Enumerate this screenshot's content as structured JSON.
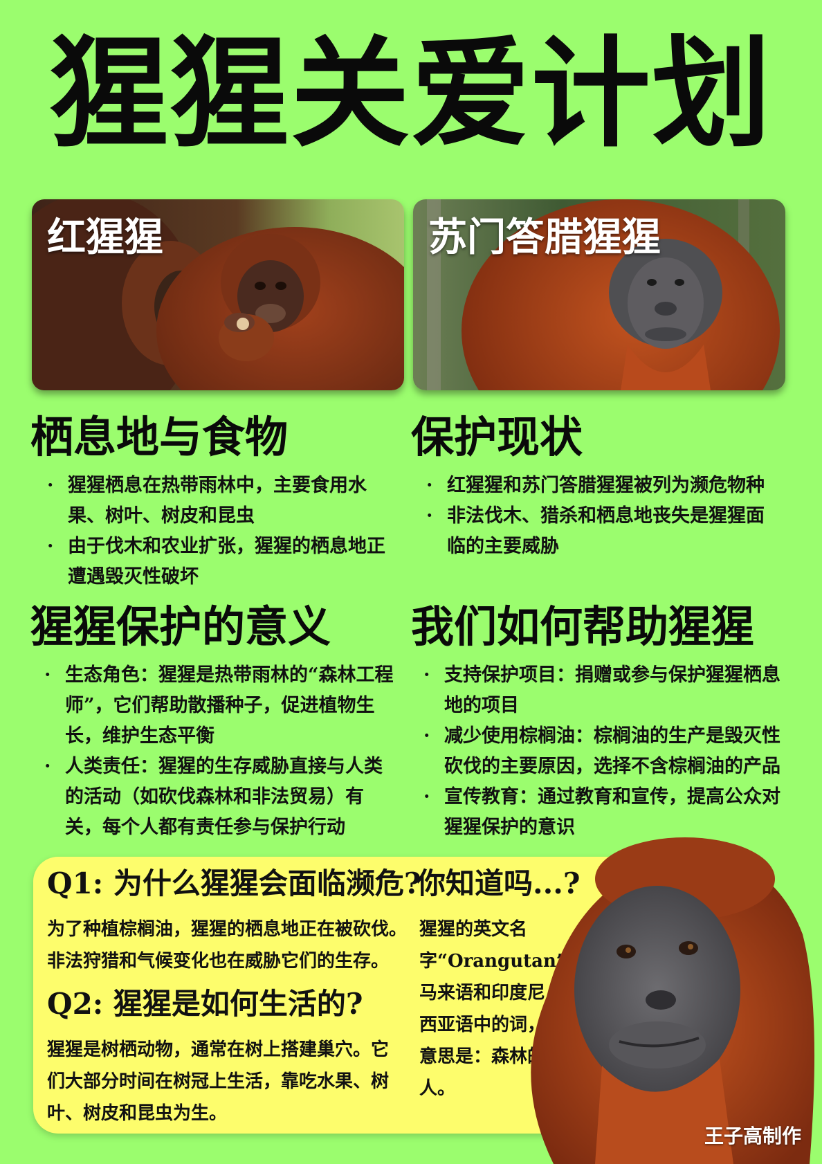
{
  "title": "猩猩关爱计划",
  "photos": {
    "left_label": "红猩猩",
    "right_label": "苏门答腊猩猩"
  },
  "sections": {
    "habitat": {
      "heading": "栖息地与食物",
      "items": [
        "猩猩栖息在热带雨林中，主要食用水果、树叶、树皮和昆虫",
        "由于伐木和农业扩张，猩猩的栖息地正遭遇毁灭性破坏"
      ]
    },
    "status": {
      "heading": "保护现状",
      "items": [
        "红猩猩和苏门答腊猩猩被列为濒危物种",
        "非法伐木、猎杀和栖息地丧失是猩猩面临的主要威胁"
      ]
    },
    "meaning": {
      "heading": "猩猩保护的意义",
      "items": [
        "生态角色：猩猩是热带雨林的“森林工程师”，它们帮助散播种子，促进植物生长，维护生态平衡",
        "人类责任：猩猩的生存威胁直接与人类的活动（如砍伐森林和非法贸易）有关，每个人都有责任参与保护行动"
      ]
    },
    "help": {
      "heading": "我们如何帮助猩猩",
      "items": [
        "支持保护项目：捐赠或参与保护猩猩栖息地的项目",
        "减少使用棕榈油：棕榈油的生产是毁灭性砍伐的主要原因，选择不含棕榈油的产品",
        "宣传教育：通过教育和宣传，提高公众对猩猩保护的意识"
      ]
    }
  },
  "qa": {
    "q1_title": "Q1: 为什么猩猩会面临濒危?",
    "q1_body": "为了种植棕榈油，猩猩的栖息地正在被砍伐。非法狩猎和气候变化也在威胁它们的生存。",
    "q2_title": "Q2: 猩猩是如何生活的?",
    "q2_body": "猩猩是树栖动物，通常在树上搭建巢穴。它们大部分时间在树冠上生活，靠吃水果、树叶、树皮和昆虫为生。",
    "fact_title": "你知道吗...?",
    "fact_body": "猩猩的英文名字“Orangutan”是马来语和印度尼西亚语中的词，意思是：森林的人。"
  },
  "credit": "王子高制作",
  "colors": {
    "background": "#9bfd6e",
    "qa_box": "#fdfd6c",
    "text": "#0a0a0a",
    "fur": "#b5461d"
  }
}
